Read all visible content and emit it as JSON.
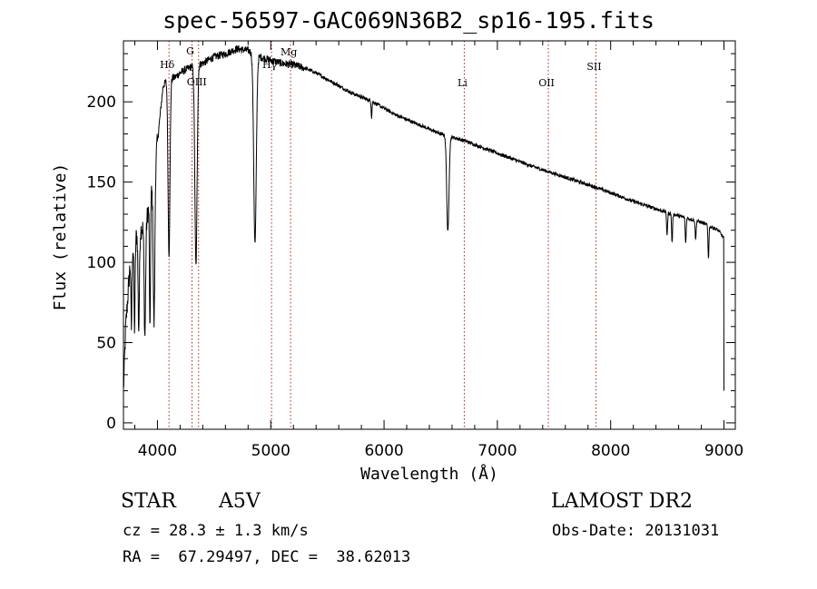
{
  "chart_data": {
    "type": "line",
    "title": "spec-56597-GAC069N36B2_sp16-195.fits",
    "xlabel": "Wavelength (Å)",
    "ylabel": "Flux (relative)",
    "xlim": [
      3700,
      9100
    ],
    "ylim": [
      -4,
      238
    ],
    "x_ticks": [
      4000,
      5000,
      6000,
      7000,
      8000,
      9000
    ],
    "y_ticks": [
      0,
      50,
      100,
      150,
      200
    ],
    "grid": false,
    "line_color": "#000000",
    "marker_color": "#b22222",
    "spectral_lines": [
      {
        "label": "Hδ",
        "wavelength": 4102
      },
      {
        "label": "G",
        "wavelength": 4305
      },
      {
        "label": "OIII",
        "wavelength": 4363
      },
      {
        "label": "Hγ",
        "wavelength": 5007
      },
      {
        "label": "Mg",
        "wavelength": 5175
      },
      {
        "label": "Li",
        "wavelength": 6708
      },
      {
        "label": "OII",
        "wavelength": 7450
      },
      {
        "label": "SII",
        "wavelength": 7870
      }
    ],
    "continuum": {
      "x": [
        3700,
        3720,
        3760,
        3800,
        3850,
        3900,
        3950,
        4000,
        4050,
        4100,
        4150,
        4200,
        4300,
        4400,
        4500,
        4600,
        4700,
        4800,
        4900,
        5000,
        5100,
        5200,
        5300,
        5400,
        5500,
        5700,
        5900,
        6100,
        6300,
        6500,
        6700,
        7000,
        7300,
        7600,
        7900,
        8200,
        8500,
        8800,
        8950,
        9000
      ],
      "y": [
        20,
        60,
        100,
        115,
        120,
        125,
        145,
        175,
        210,
        215,
        215,
        218,
        222,
        224,
        228,
        230,
        233,
        232,
        228,
        226,
        224,
        223,
        221,
        218,
        214,
        206,
        200,
        192,
        186,
        180,
        176,
        168,
        160,
        153,
        146,
        138,
        131,
        125,
        120,
        115
      ]
    },
    "absorption_lines": [
      {
        "center": 3770,
        "depth": 45,
        "width": 6
      },
      {
        "center": 3798,
        "depth": 55,
        "width": 7
      },
      {
        "center": 3835,
        "depth": 60,
        "width": 8
      },
      {
        "center": 3889,
        "depth": 70,
        "width": 9
      },
      {
        "center": 3934,
        "depth": 85,
        "width": 6
      },
      {
        "center": 3970,
        "depth": 95,
        "width": 10
      },
      {
        "center": 4102,
        "depth": 110,
        "width": 12
      },
      {
        "center": 4340,
        "depth": 125,
        "width": 14
      },
      {
        "center": 4861,
        "depth": 118,
        "width": 16
      },
      {
        "center": 5890,
        "depth": 10,
        "width": 5
      },
      {
        "center": 6563,
        "depth": 60,
        "width": 14
      },
      {
        "center": 8498,
        "depth": 14,
        "width": 6
      },
      {
        "center": 8542,
        "depth": 18,
        "width": 6
      },
      {
        "center": 8662,
        "depth": 16,
        "width": 6
      },
      {
        "center": 8750,
        "depth": 12,
        "width": 6
      },
      {
        "center": 8863,
        "depth": 20,
        "width": 6
      }
    ],
    "noise": 2.2
  },
  "info": {
    "object_class": "STAR",
    "subclass": "A5V",
    "survey": "LAMOST DR2",
    "cz": "cz = 28.3 ± 1.3 km/s",
    "obs_date": "Obs-Date: 20131031",
    "radec": "RA =  67.29497, DEC =  38.62013"
  }
}
